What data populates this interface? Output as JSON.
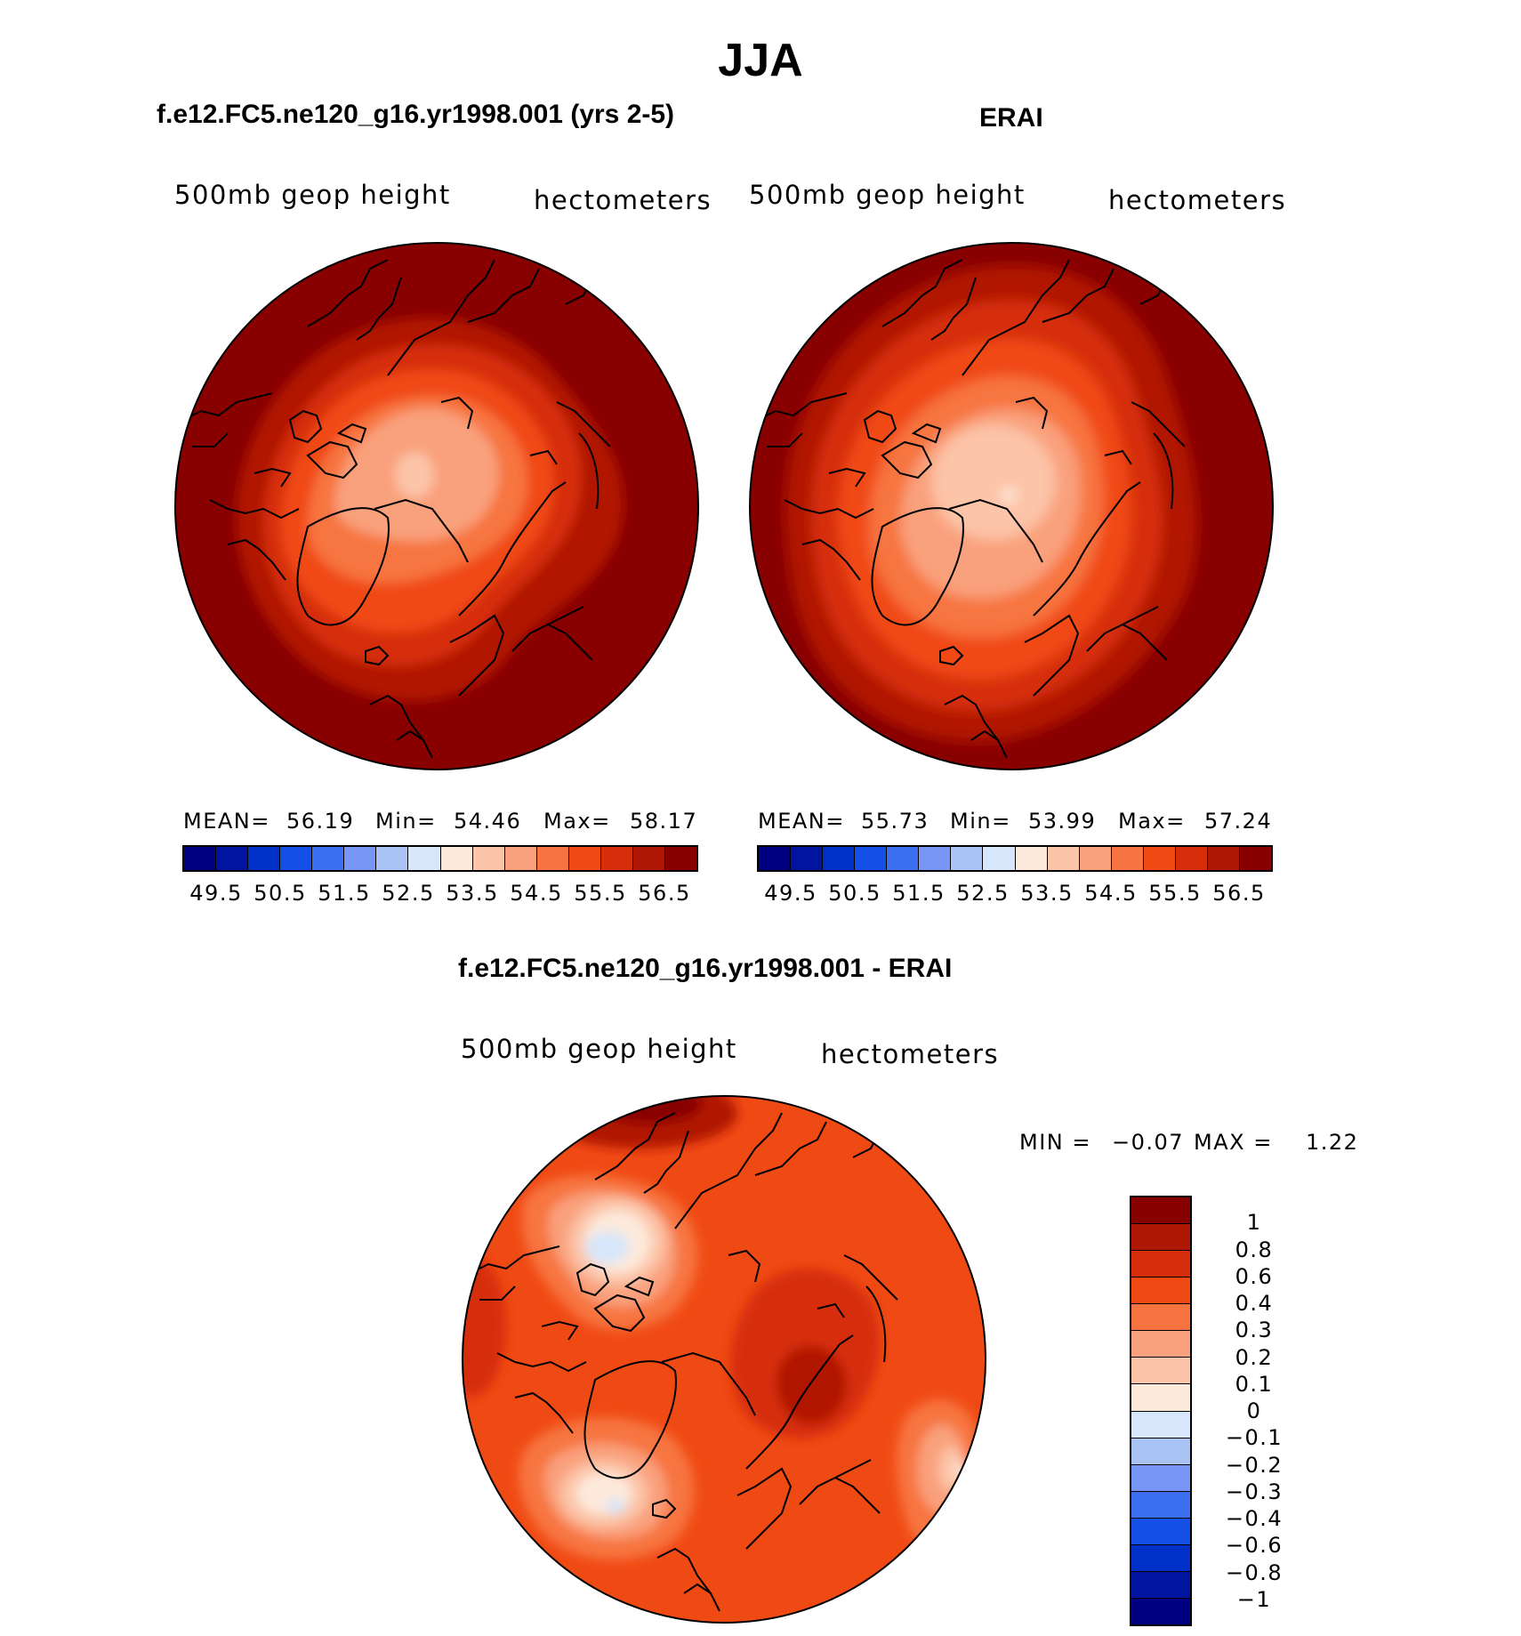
{
  "title": "JJA",
  "panels": [
    {
      "id": "model",
      "title": "f.e12.FC5.ne120_g16.yr1998.001 (yrs 2-5)",
      "left_label": "500mb geop height",
      "right_label": "hectometers",
      "stats": {
        "mean_label": "MEAN=",
        "mean": "56.19",
        "min_label": "Min=",
        "min": "54.46",
        "max_label": "Max=",
        "max": "58.17"
      }
    },
    {
      "id": "erai",
      "title": "ERAI",
      "left_label": "500mb geop height",
      "right_label": "hectometers",
      "stats": {
        "mean_label": "MEAN=",
        "mean": "55.73",
        "min_label": "Min=",
        "min": "53.99",
        "max_label": "Max=",
        "max": "57.24"
      }
    },
    {
      "id": "diff",
      "title": "f.e12.FC5.ne120_g16.yr1998.001 - ERAI",
      "left_label": "500mb geop height",
      "right_label": "hectometers",
      "stats": {
        "min_label": "MIN =",
        "min": "−0.07",
        "max_label": "MAX =",
        "max": "1.22"
      }
    }
  ],
  "colorbar_abs": {
    "colors": [
      "#000080",
      "#0014a0",
      "#0030c8",
      "#1450e6",
      "#3c6ef0",
      "#7896f5",
      "#aac3f5",
      "#d7e6fa",
      "#fde9da",
      "#fcc4a8",
      "#f9a07c",
      "#f77440",
      "#f04a14",
      "#d62e0a",
      "#b01806",
      "#880000"
    ],
    "labels": [
      "49.5",
      "50.5",
      "51.5",
      "52.5",
      "53.5",
      "54.5",
      "55.5",
      "56.5"
    ]
  },
  "colorbar_diff": {
    "colors": [
      "#880000",
      "#b01806",
      "#d62e0a",
      "#f04a14",
      "#f77440",
      "#f9a07c",
      "#fcc4a8",
      "#fde9da",
      "#d7e6fa",
      "#aac3f5",
      "#7896f5",
      "#3c6ef0",
      "#1450e6",
      "#0030c8",
      "#0014a0",
      "#000080"
    ],
    "labels": [
      "1",
      "0.8",
      "0.6",
      "0.4",
      "0.3",
      "0.2",
      "0.1",
      "0",
      "−0.1",
      "−0.2",
      "−0.3",
      "−0.4",
      "−0.6",
      "−0.8",
      "−1"
    ]
  }
}
